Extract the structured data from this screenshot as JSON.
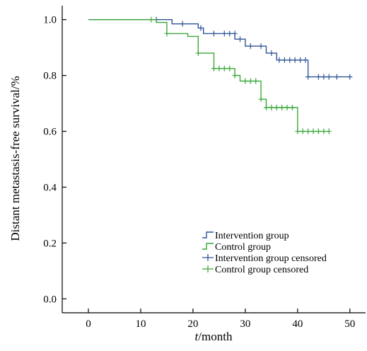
{
  "chart_data": {
    "type": "line",
    "subtype": "kaplan-meier step",
    "title": "",
    "xlabel_italic": "t",
    "xlabel_rest": "/month",
    "ylabel": "Distant metastasis-free survival/%",
    "xlim": [
      -5,
      53
    ],
    "ylim": [
      -0.05,
      1.05
    ],
    "x_ticks": [
      0,
      10,
      20,
      30,
      40,
      50
    ],
    "x_tick_labels": [
      "0",
      "10",
      "20",
      "30",
      "40",
      "50"
    ],
    "y_ticks": [
      0.0,
      0.2,
      0.4,
      0.6,
      0.8,
      1.0
    ],
    "y_tick_labels": [
      "0.0",
      "0.2",
      "0.4",
      "0.6",
      "0.8",
      "1.0"
    ],
    "grid": false,
    "legend_position": "bottom-right",
    "series": [
      {
        "name": "Intervention group",
        "color": "#2f5597",
        "censor_label": "Intervention group censored",
        "steps": [
          {
            "x": 0,
            "y": 1.0
          },
          {
            "x": 16,
            "y": 0.985
          },
          {
            "x": 21,
            "y": 0.97
          },
          {
            "x": 22,
            "y": 0.95
          },
          {
            "x": 28,
            "y": 0.93
          },
          {
            "x": 30,
            "y": 0.905
          },
          {
            "x": 34,
            "y": 0.88
          },
          {
            "x": 36,
            "y": 0.855
          },
          {
            "x": 42,
            "y": 0.795
          },
          {
            "x": 50,
            "y": 0.795
          }
        ],
        "censored": [
          {
            "x": 13,
            "y": 1.0
          },
          {
            "x": 18,
            "y": 0.985
          },
          {
            "x": 21.5,
            "y": 0.97
          },
          {
            "x": 24,
            "y": 0.95
          },
          {
            "x": 26,
            "y": 0.95
          },
          {
            "x": 27,
            "y": 0.95
          },
          {
            "x": 28,
            "y": 0.95
          },
          {
            "x": 29,
            "y": 0.93
          },
          {
            "x": 31,
            "y": 0.905
          },
          {
            "x": 33,
            "y": 0.905
          },
          {
            "x": 35,
            "y": 0.88
          },
          {
            "x": 36.5,
            "y": 0.855
          },
          {
            "x": 37.5,
            "y": 0.855
          },
          {
            "x": 38.5,
            "y": 0.855
          },
          {
            "x": 39.5,
            "y": 0.855
          },
          {
            "x": 40.5,
            "y": 0.855
          },
          {
            "x": 41.5,
            "y": 0.855
          },
          {
            "x": 42,
            "y": 0.795
          },
          {
            "x": 44,
            "y": 0.795
          },
          {
            "x": 45,
            "y": 0.795
          },
          {
            "x": 46,
            "y": 0.795
          },
          {
            "x": 47.5,
            "y": 0.795
          },
          {
            "x": 50,
            "y": 0.795
          }
        ]
      },
      {
        "name": "Control group",
        "color": "#3aa83a",
        "censor_label": "Control group censored",
        "steps": [
          {
            "x": 0,
            "y": 1.0
          },
          {
            "x": 13,
            "y": 0.99
          },
          {
            "x": 15,
            "y": 0.95
          },
          {
            "x": 19,
            "y": 0.94
          },
          {
            "x": 21,
            "y": 0.88
          },
          {
            "x": 24,
            "y": 0.825
          },
          {
            "x": 28,
            "y": 0.8
          },
          {
            "x": 29,
            "y": 0.78
          },
          {
            "x": 33,
            "y": 0.715
          },
          {
            "x": 34,
            "y": 0.685
          },
          {
            "x": 40,
            "y": 0.6
          },
          {
            "x": 46,
            "y": 0.6
          }
        ],
        "censored": [
          {
            "x": 12,
            "y": 1.0
          },
          {
            "x": 15,
            "y": 0.95
          },
          {
            "x": 21,
            "y": 0.88
          },
          {
            "x": 24,
            "y": 0.825
          },
          {
            "x": 25,
            "y": 0.825
          },
          {
            "x": 26,
            "y": 0.825
          },
          {
            "x": 27,
            "y": 0.825
          },
          {
            "x": 28,
            "y": 0.8
          },
          {
            "x": 30,
            "y": 0.78
          },
          {
            "x": 31,
            "y": 0.78
          },
          {
            "x": 32,
            "y": 0.78
          },
          {
            "x": 33,
            "y": 0.715
          },
          {
            "x": 34,
            "y": 0.685
          },
          {
            "x": 35,
            "y": 0.685
          },
          {
            "x": 36,
            "y": 0.685
          },
          {
            "x": 37,
            "y": 0.685
          },
          {
            "x": 38,
            "y": 0.685
          },
          {
            "x": 39,
            "y": 0.685
          },
          {
            "x": 40,
            "y": 0.6
          },
          {
            "x": 41,
            "y": 0.6
          },
          {
            "x": 42,
            "y": 0.6
          },
          {
            "x": 43,
            "y": 0.6
          },
          {
            "x": 44,
            "y": 0.6
          },
          {
            "x": 45,
            "y": 0.6
          },
          {
            "x": 46,
            "y": 0.6
          }
        ]
      }
    ]
  }
}
